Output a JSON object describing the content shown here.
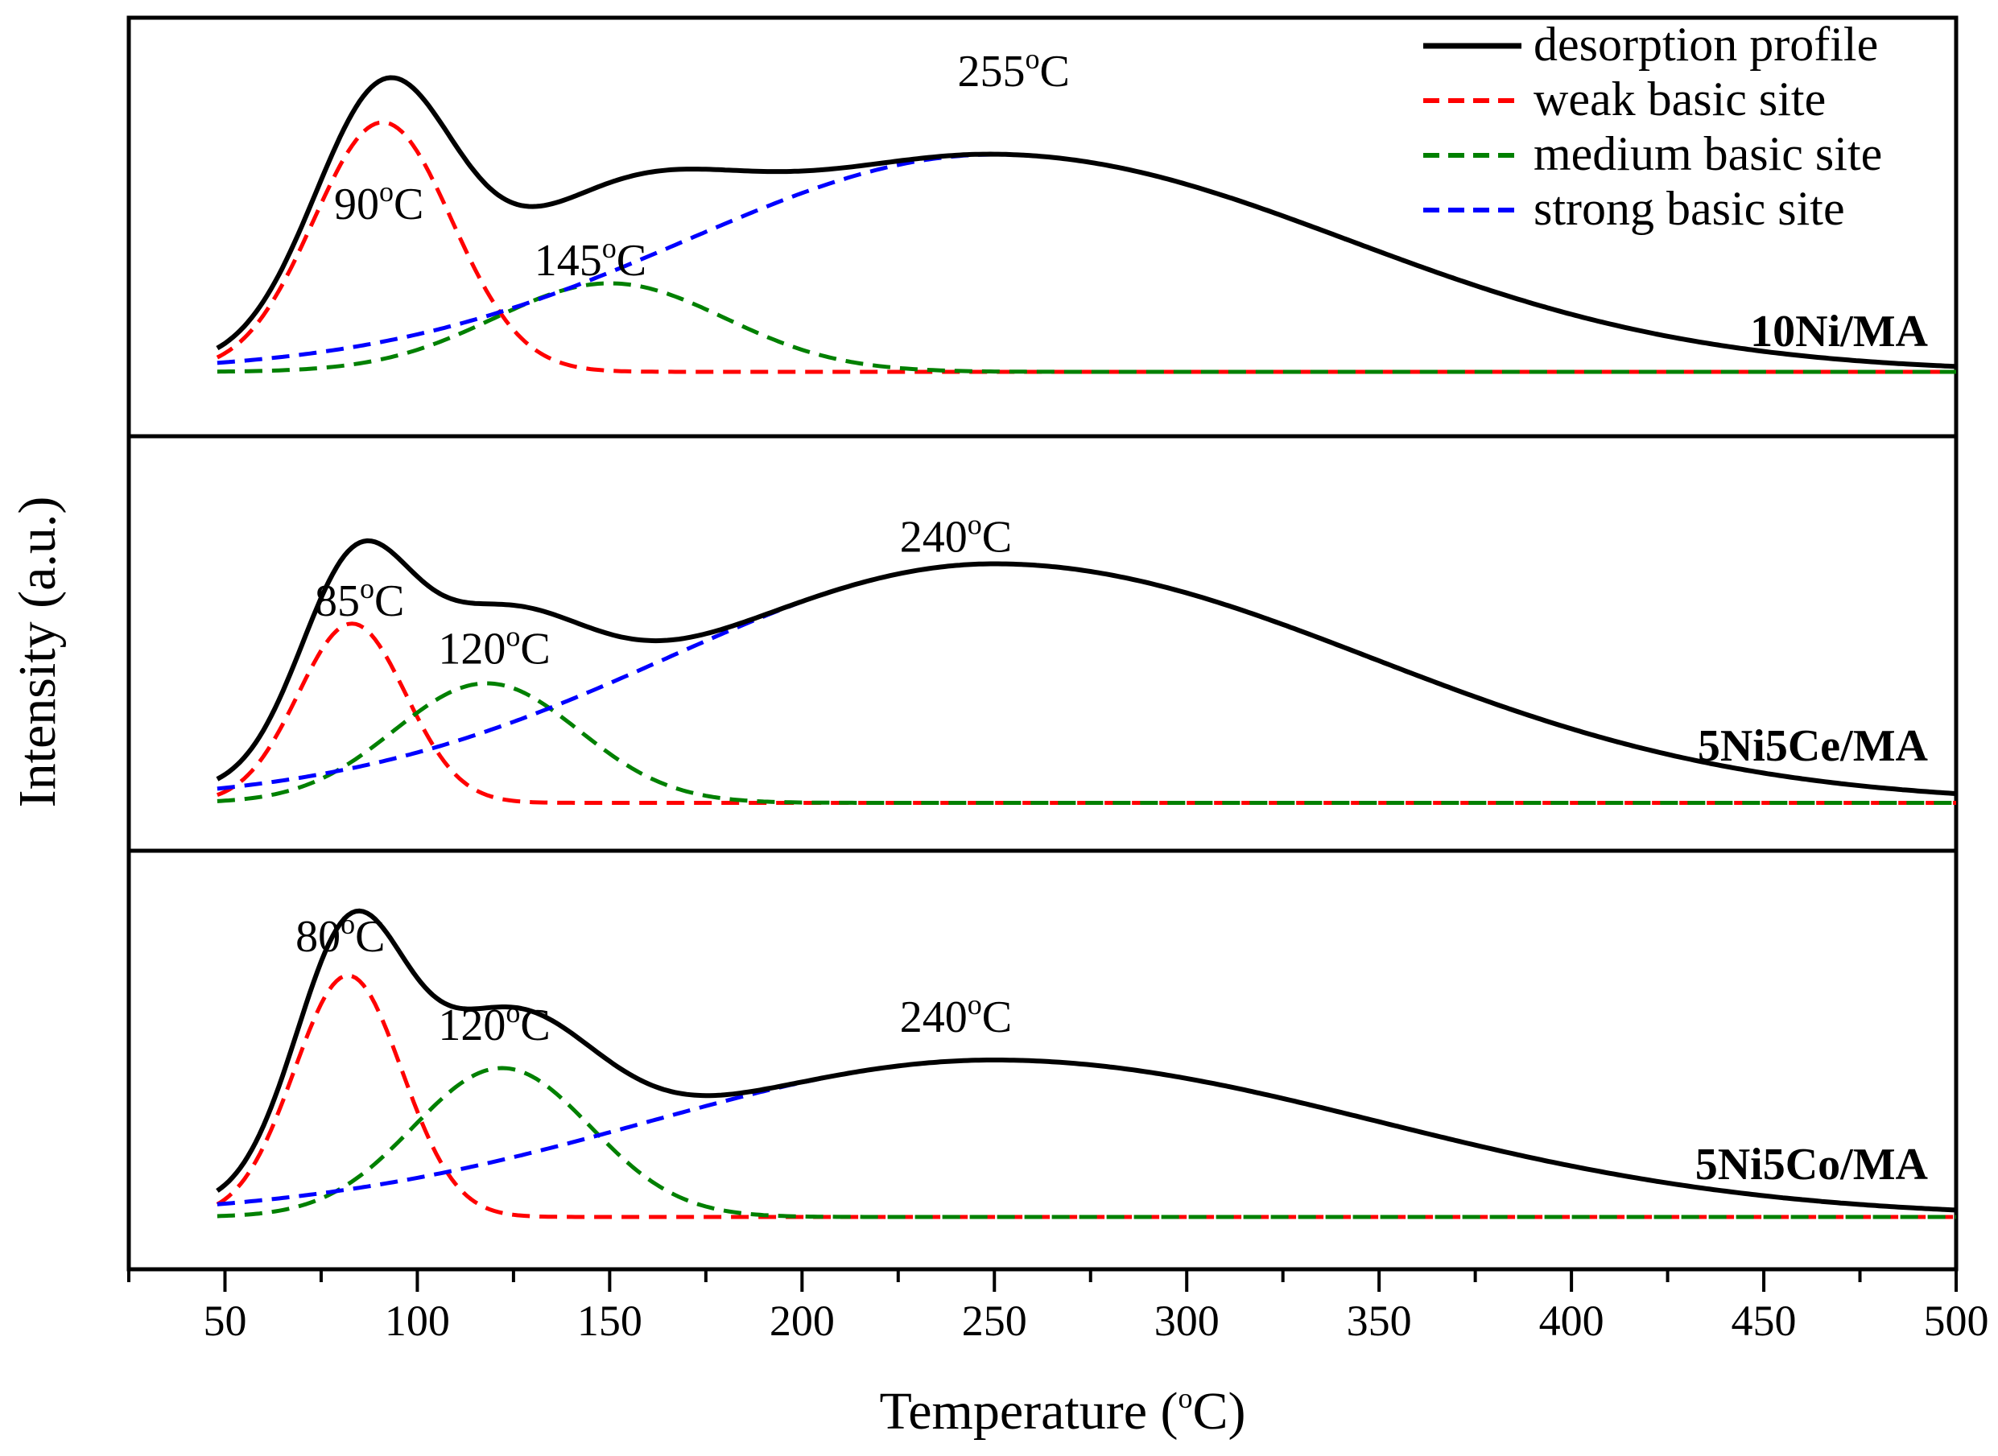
{
  "chart_data": {
    "type": "line",
    "xlabel": {
      "main": "Temperature (",
      "sup": "o",
      "unit": "C)"
    },
    "ylabel": "Intensity (a.u.)",
    "xlim": [
      25,
      500
    ],
    "ylim": [
      0,
      1
    ],
    "x_ticks": [
      50,
      100,
      150,
      200,
      250,
      300,
      350,
      400,
      450,
      500
    ],
    "legend": {
      "position": "top-right",
      "entries": [
        {
          "key": "total",
          "label": "desorption profile",
          "color": "#000000",
          "dash": "solid"
        },
        {
          "key": "weak",
          "label": "weak basic site",
          "color": "#ff0000",
          "dash": "dashed"
        },
        {
          "key": "medium",
          "label": "medium basic site",
          "color": "#008000",
          "dash": "dashed"
        },
        {
          "key": "strong",
          "label": "strong basic site",
          "color": "#0000ff",
          "dash": "dashed"
        }
      ]
    },
    "panels": [
      {
        "sample": "10Ni/MA",
        "base": 0.14,
        "peaks": {
          "weak": {
            "center": 91,
            "height": 0.62,
            "sigma": 18
          },
          "medium": {
            "center": 150,
            "height": 0.22,
            "sigma": 30
          },
          "strong": {
            "center": 250,
            "height": 0.54,
            "sigma": 58,
            "sigma_left": 80,
            "sigma_right": 92
          }
        },
        "annotations": [
          {
            "x": 90,
            "y": 0.52,
            "value": "90",
            "unit": "C"
          },
          {
            "x": 145,
            "y": 0.38,
            "value": "145",
            "unit": "C"
          },
          {
            "x": 255,
            "y": 0.85,
            "value": "255",
            "unit": "C"
          }
        ]
      },
      {
        "sample": "5Ni5Ce/MA",
        "base": 0.1,
        "peaks": {
          "weak": {
            "center": 83,
            "height": 0.45,
            "sigma": 14
          },
          "medium": {
            "center": 118,
            "height": 0.3,
            "sigma": 24
          },
          "strong": {
            "center": 250,
            "height": 0.6,
            "sigma": 60,
            "sigma_left": 85,
            "sigma_right": 98
          }
        },
        "annotations": [
          {
            "x": 85,
            "y": 0.57,
            "value": "85",
            "unit": "C"
          },
          {
            "x": 120,
            "y": 0.45,
            "value": "120",
            "unit": "C"
          },
          {
            "x": 240,
            "y": 0.73,
            "value": "240",
            "unit": "C"
          }
        ]
      },
      {
        "sample": "5Ni5Co/MA",
        "base": 0.11,
        "peaks": {
          "weak": {
            "center": 82,
            "height": 0.6,
            "sigma": 14
          },
          "medium": {
            "center": 122,
            "height": 0.37,
            "sigma": 23
          },
          "strong": {
            "center": 250,
            "height": 0.39,
            "sigma": 60,
            "sigma_left": 90,
            "sigma_right": 100
          }
        },
        "annotations": [
          {
            "x": 80,
            "y": 0.77,
            "value": "80",
            "unit": "C"
          },
          {
            "x": 120,
            "y": 0.55,
            "value": "120",
            "unit": "C"
          },
          {
            "x": 240,
            "y": 0.57,
            "value": "240",
            "unit": "C"
          }
        ]
      }
    ]
  }
}
